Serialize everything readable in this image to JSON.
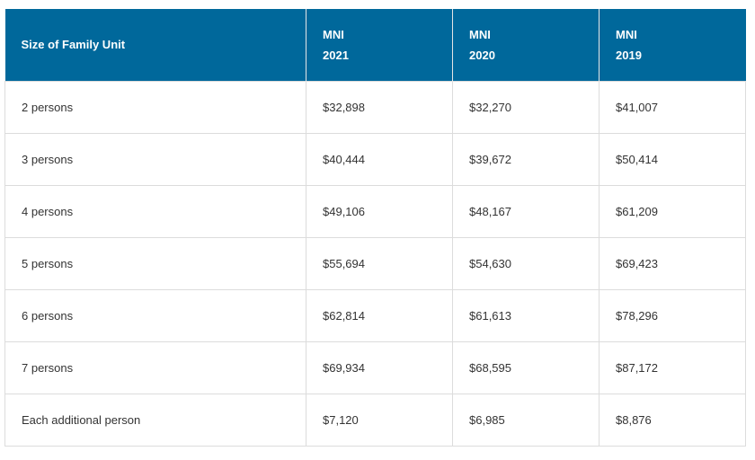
{
  "table": {
    "header": [
      "Size of Family Unit",
      [
        "MNI",
        "2021"
      ],
      [
        "MNI",
        "2020"
      ],
      [
        "MNI",
        "2019"
      ]
    ],
    "rows": [
      [
        "2 persons",
        "$32,898",
        "$32,270",
        "$41,007"
      ],
      [
        "3 persons",
        "$40,444",
        "$39,672",
        "$50,414"
      ],
      [
        "4 persons",
        "$49,106",
        "$48,167",
        "$61,209"
      ],
      [
        "5 persons",
        "$55,694",
        "$54,630",
        "$69,423"
      ],
      [
        "6 persons",
        "$62,814",
        "$61,613",
        "$78,296"
      ],
      [
        "7 persons",
        "$69,934",
        "$68,595",
        "$87,172"
      ],
      [
        "Each additional person",
        "$7,120",
        "$6,985",
        "$8,876"
      ]
    ]
  }
}
